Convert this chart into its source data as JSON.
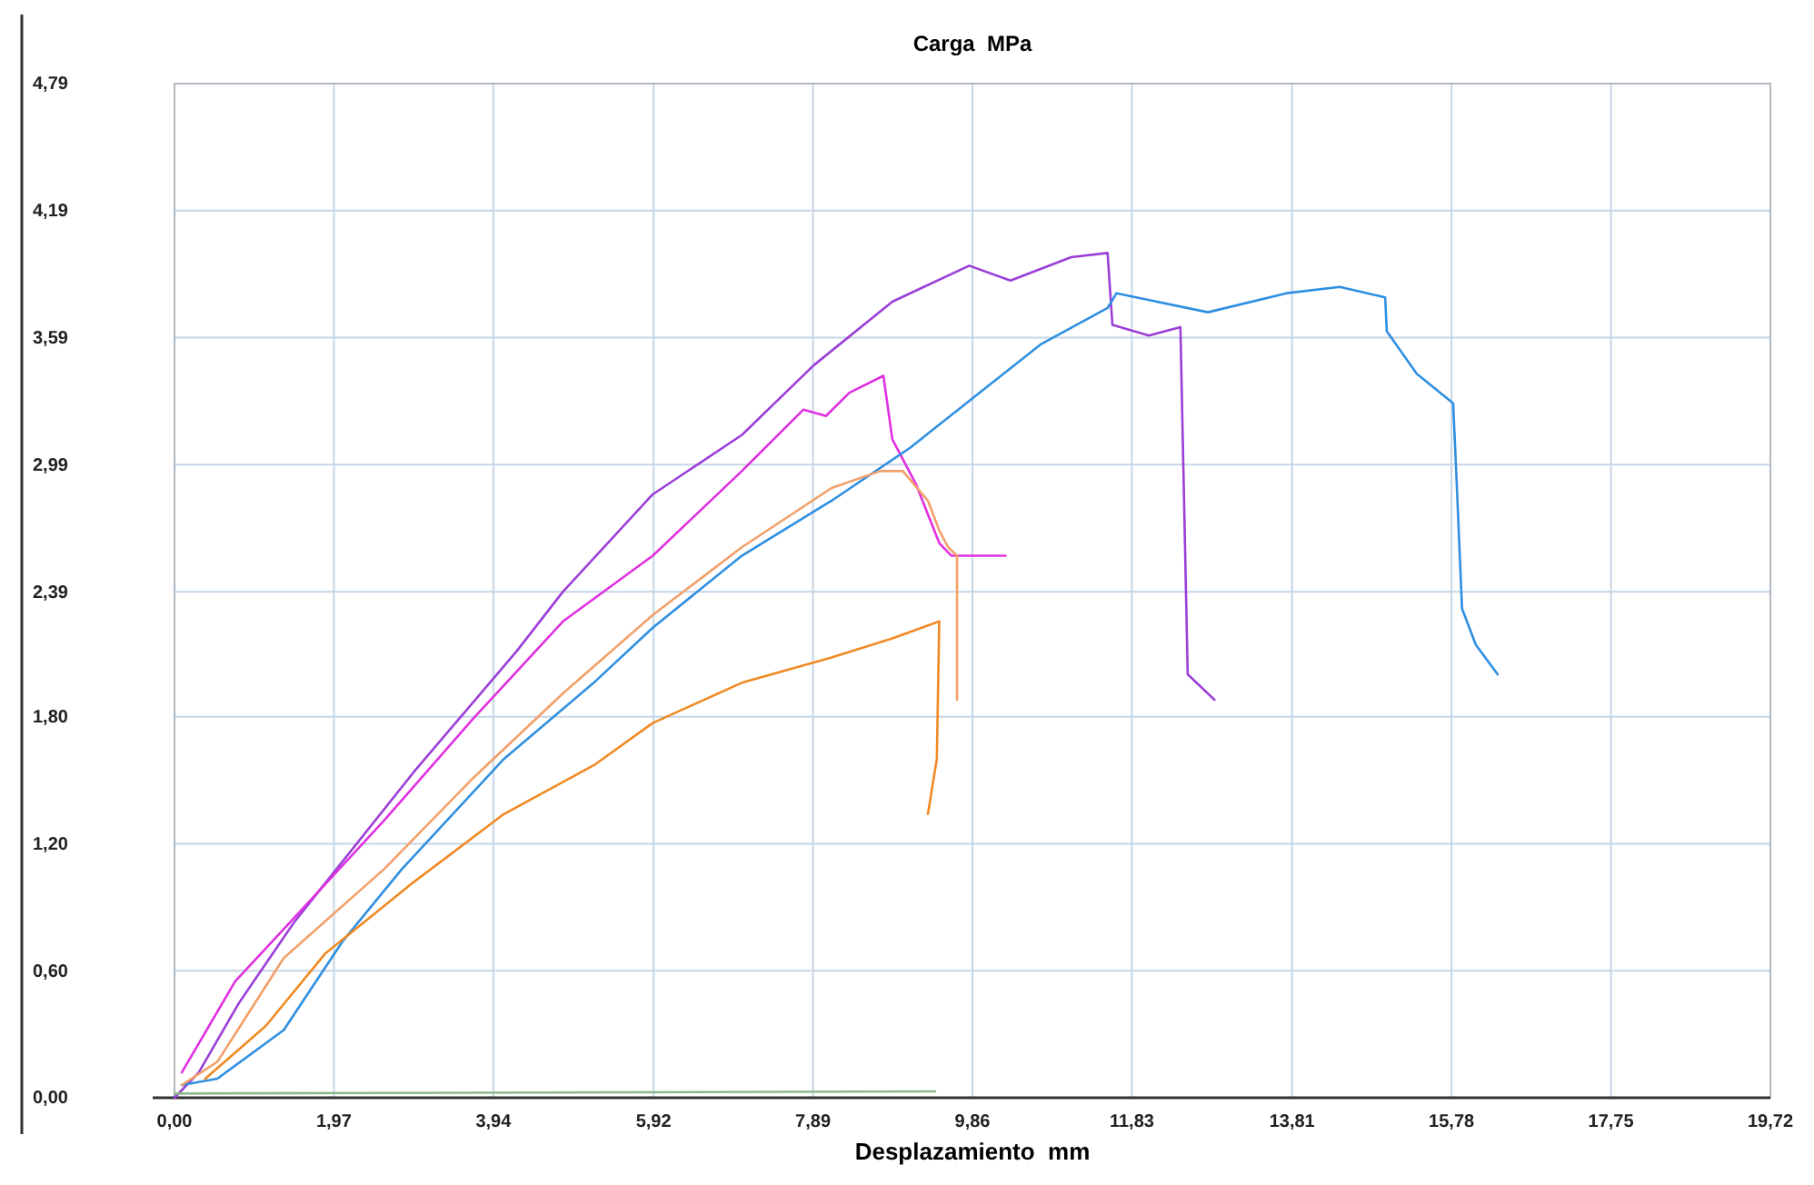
{
  "chart_data": {
    "type": "line",
    "title": "Carga  MPa",
    "xlabel": "Desplazamiento  mm",
    "xlim": [
      0,
      19.72
    ],
    "ylim": [
      0,
      4.79
    ],
    "xticks": [
      {
        "value": 0,
        "label": "0,00"
      },
      {
        "value": 1.97,
        "label": "1,97"
      },
      {
        "value": 3.94,
        "label": "3,94"
      },
      {
        "value": 5.92,
        "label": "5,92"
      },
      {
        "value": 7.89,
        "label": "7,89"
      },
      {
        "value": 9.86,
        "label": "9,86"
      },
      {
        "value": 11.83,
        "label": "11,83"
      },
      {
        "value": 13.81,
        "label": "13,81"
      },
      {
        "value": 15.78,
        "label": "15,78"
      },
      {
        "value": 17.75,
        "label": "17,75"
      },
      {
        "value": 19.72,
        "label": "19,72"
      }
    ],
    "yticks": [
      {
        "value": 0,
        "label": "0,00"
      },
      {
        "value": 0.6,
        "label": "0,60"
      },
      {
        "value": 1.2,
        "label": "1,20"
      },
      {
        "value": 1.8,
        "label": "1,80"
      },
      {
        "value": 2.39,
        "label": "2,39"
      },
      {
        "value": 2.99,
        "label": "2,99"
      },
      {
        "value": 3.59,
        "label": "3,59"
      },
      {
        "value": 4.19,
        "label": "4,19"
      },
      {
        "value": 4.79,
        "label": "4,79"
      }
    ],
    "grid": true,
    "marker": "none",
    "line_style": "solid",
    "series": [
      {
        "color": "#9b3fd8",
        "x": [
          0,
          0.3,
          0.8,
          1.48,
          2.96,
          4.23,
          4.8,
          5.91,
          7.01,
          7.9,
          8.87,
          9.82,
          10.33,
          11.08,
          11.53,
          11.59,
          12.04,
          12.43,
          12.52,
          12.85
        ],
        "values": [
          0,
          0.12,
          0.45,
          0.83,
          1.54,
          2.11,
          2.39,
          2.85,
          3.13,
          3.46,
          3.76,
          3.93,
          3.86,
          3.97,
          3.99,
          3.65,
          3.6,
          3.64,
          2,
          1.88
        ]
      },
      {
        "color": "#e030e0",
        "x": [
          0.09,
          0.75,
          1.48,
          2.59,
          3.69,
          4.8,
          5.91,
          7.01,
          7.77,
          8.05,
          8.34,
          8.76,
          8.87,
          9.16,
          9.45,
          9.6,
          10.27
        ],
        "values": [
          0.12,
          0.55,
          0.85,
          1.31,
          1.79,
          2.25,
          2.56,
          2.96,
          3.25,
          3.22,
          3.33,
          3.41,
          3.11,
          2.9,
          2.62,
          2.56,
          2.56
        ]
      },
      {
        "color": "#2f8fe0",
        "x": [
          0.09,
          0.53,
          1.35,
          2.08,
          2.81,
          4.07,
          5.18,
          5.91,
          7.01,
          8.12,
          9.09,
          10.71,
          11.53,
          11.64,
          12.77,
          13.74,
          14.4,
          14.96,
          14.98,
          15.35,
          15.8,
          15.84,
          15.91,
          16.08,
          16.35
        ],
        "values": [
          0.06,
          0.09,
          0.32,
          0.74,
          1.08,
          1.6,
          1.96,
          2.22,
          2.56,
          2.82,
          3.07,
          3.56,
          3.73,
          3.8,
          3.71,
          3.8,
          3.83,
          3.78,
          3.62,
          3.42,
          3.28,
          2.94,
          2.31,
          2.14,
          2
        ]
      },
      {
        "color": "#f2a06a",
        "x": [
          0.09,
          0.53,
          1.35,
          2.59,
          3.69,
          4.8,
          5.91,
          7.01,
          8.12,
          8.72,
          9,
          9.31,
          9.45,
          9.56,
          9.67,
          9.67
        ],
        "values": [
          0.06,
          0.17,
          0.66,
          1.08,
          1.51,
          1.91,
          2.28,
          2.6,
          2.88,
          2.96,
          2.96,
          2.82,
          2.68,
          2.6,
          2.56,
          1.88
        ]
      },
      {
        "color": "#f08a24",
        "x": [
          0.38,
          1.13,
          1.86,
          2.96,
          4.07,
          5.18,
          5.91,
          7.01,
          8.12,
          8.87,
          9.45,
          9.42,
          9.31
        ],
        "values": [
          0.09,
          0.34,
          0.68,
          1.02,
          1.34,
          1.57,
          1.77,
          1.96,
          2.08,
          2.17,
          2.25,
          1.6,
          1.34
        ]
      },
      {
        "color": "#8fb88f",
        "x": [
          0,
          9.4
        ],
        "values": [
          0.02,
          0.03
        ]
      }
    ]
  }
}
